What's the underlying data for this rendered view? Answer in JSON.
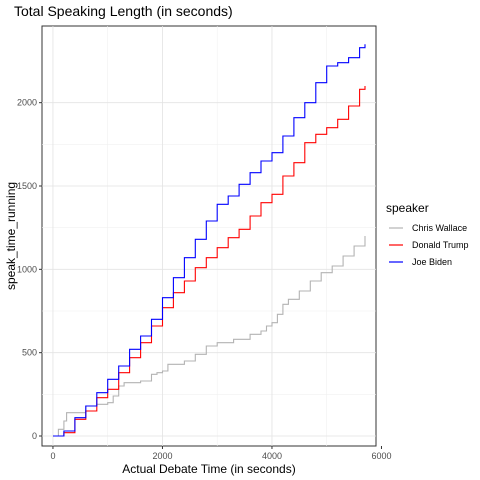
{
  "chart_data": {
    "type": "line",
    "title": "Total Speaking Length (in seconds)",
    "xlabel": "Actual Debate Time (in seconds)",
    "ylabel": "speak_time_running",
    "xlim": [
      -200,
      5900
    ],
    "ylim": [
      -60,
      2460
    ],
    "x_ticks": [
      0,
      2000,
      4000,
      6000
    ],
    "y_ticks": [
      0,
      500,
      1000,
      1500,
      2000
    ],
    "x_tick_labels": [
      "0",
      "2000",
      "4000",
      "6000"
    ],
    "y_tick_labels": [
      "0",
      "500",
      "1000",
      "1500",
      "2000"
    ],
    "grid": true,
    "step": true,
    "legend": {
      "title": "speaker",
      "position": "right"
    },
    "series": [
      {
        "name": "Chris Wallace",
        "color": "#b3b3b3",
        "points": [
          [
            0,
            0
          ],
          [
            100,
            40
          ],
          [
            200,
            90
          ],
          [
            250,
            140
          ],
          [
            400,
            140
          ],
          [
            600,
            180
          ],
          [
            800,
            190
          ],
          [
            1000,
            200
          ],
          [
            1100,
            240
          ],
          [
            1200,
            300
          ],
          [
            1300,
            320
          ],
          [
            1600,
            330
          ],
          [
            1800,
            370
          ],
          [
            1900,
            380
          ],
          [
            2000,
            390
          ],
          [
            2100,
            430
          ],
          [
            2400,
            450
          ],
          [
            2600,
            490
          ],
          [
            2800,
            540
          ],
          [
            3000,
            560
          ],
          [
            3300,
            580
          ],
          [
            3600,
            610
          ],
          [
            3800,
            630
          ],
          [
            3900,
            660
          ],
          [
            4000,
            680
          ],
          [
            4100,
            730
          ],
          [
            4200,
            790
          ],
          [
            4300,
            820
          ],
          [
            4500,
            870
          ],
          [
            4700,
            930
          ],
          [
            4900,
            980
          ],
          [
            5100,
            1020
          ],
          [
            5300,
            1080
          ],
          [
            5500,
            1140
          ],
          [
            5700,
            1200
          ]
        ]
      },
      {
        "name": "Donald Trump",
        "color": "#ff0000",
        "points": [
          [
            0,
            0
          ],
          [
            200,
            20
          ],
          [
            400,
            100
          ],
          [
            600,
            150
          ],
          [
            800,
            230
          ],
          [
            1000,
            280
          ],
          [
            1200,
            380
          ],
          [
            1400,
            470
          ],
          [
            1600,
            560
          ],
          [
            1800,
            660
          ],
          [
            2000,
            770
          ],
          [
            2200,
            860
          ],
          [
            2400,
            930
          ],
          [
            2600,
            1010
          ],
          [
            2800,
            1070
          ],
          [
            3000,
            1130
          ],
          [
            3200,
            1190
          ],
          [
            3400,
            1240
          ],
          [
            3600,
            1320
          ],
          [
            3800,
            1400
          ],
          [
            4000,
            1450
          ],
          [
            4200,
            1560
          ],
          [
            4400,
            1640
          ],
          [
            4600,
            1760
          ],
          [
            4800,
            1810
          ],
          [
            5000,
            1850
          ],
          [
            5200,
            1900
          ],
          [
            5400,
            1980
          ],
          [
            5600,
            2080
          ],
          [
            5700,
            2100
          ]
        ]
      },
      {
        "name": "Joe Biden",
        "color": "#0000ff",
        "points": [
          [
            0,
            0
          ],
          [
            200,
            30
          ],
          [
            400,
            110
          ],
          [
            600,
            180
          ],
          [
            800,
            260
          ],
          [
            1000,
            340
          ],
          [
            1200,
            420
          ],
          [
            1400,
            520
          ],
          [
            1600,
            600
          ],
          [
            1800,
            700
          ],
          [
            2000,
            830
          ],
          [
            2200,
            950
          ],
          [
            2400,
            1070
          ],
          [
            2600,
            1180
          ],
          [
            2800,
            1290
          ],
          [
            3000,
            1390
          ],
          [
            3200,
            1440
          ],
          [
            3400,
            1510
          ],
          [
            3600,
            1580
          ],
          [
            3800,
            1650
          ],
          [
            4000,
            1700
          ],
          [
            4200,
            1800
          ],
          [
            4400,
            1910
          ],
          [
            4600,
            2000
          ],
          [
            4800,
            2120
          ],
          [
            5000,
            2220
          ],
          [
            5200,
            2240
          ],
          [
            5400,
            2270
          ],
          [
            5600,
            2330
          ],
          [
            5700,
            2350
          ]
        ]
      }
    ]
  }
}
